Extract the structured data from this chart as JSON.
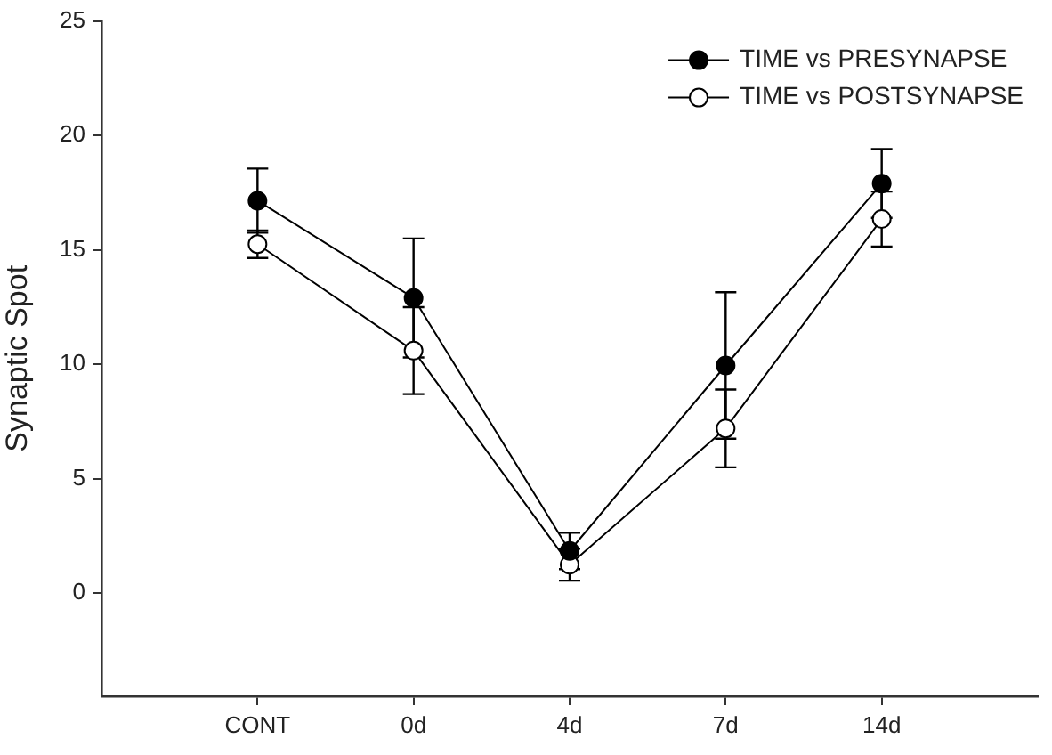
{
  "chart_data": {
    "type": "line",
    "ylabel": "Synaptic Spot",
    "categories": [
      null,
      "CONT",
      "0d",
      "4d",
      "7d",
      "14d",
      null
    ],
    "ylim": [
      -4.5,
      25
    ],
    "yticks": [
      0,
      5,
      10,
      15,
      20,
      25
    ],
    "series": [
      {
        "name": "TIME vs PRESYNAPSE",
        "color": "#000000",
        "values": [
          null,
          17.15,
          12.9,
          1.85,
          9.95,
          17.9,
          null
        ],
        "errors": [
          null,
          1.4,
          2.6,
          0.8,
          3.2,
          1.5,
          null
        ]
      },
      {
        "name": "TIME vs POSTSYNAPSE",
        "color": "#000000",
        "values": [
          null,
          15.25,
          10.6,
          1.25,
          7.2,
          16.35,
          null
        ],
        "errors": [
          null,
          0.6,
          1.9,
          0.7,
          1.7,
          1.2,
          null
        ]
      }
    ],
    "grid": false,
    "legend": "top right",
    "marker": "circle",
    "line_style": "solid"
  }
}
